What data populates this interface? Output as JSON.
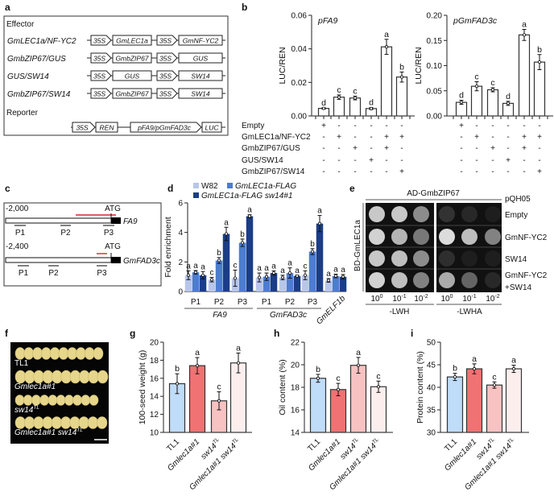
{
  "panel_labels": {
    "a": "a",
    "b": "b",
    "c": "c",
    "d": "d",
    "e": "e",
    "f": "f",
    "g": "g",
    "h": "h",
    "i": "i"
  },
  "panel_a": {
    "effector_title": "Effector",
    "reporter_title": "Reporter",
    "effectors": [
      {
        "name": "GmLEC1a/NF-YC2",
        "parts": [
          "35S",
          "GmLEC1a",
          "35S",
          "GmNF-YC2"
        ]
      },
      {
        "name": "GmbZIP67/GUS",
        "parts": [
          "35S",
          "GmbZIP67",
          "35S",
          "GUS"
        ]
      },
      {
        "name": "GUS/SW14",
        "parts": [
          "35S",
          "GUS",
          "35S",
          "SW14"
        ]
      },
      {
        "name": "GmbZIP67/SW14",
        "parts": [
          "35S",
          "GmbZIP67",
          "35S",
          "SW14"
        ]
      }
    ],
    "reporter_parts": [
      "35S",
      "REN",
      "pFA9/pGmFAD3c",
      "LUC"
    ]
  },
  "panel_b": {
    "rows": [
      {
        "label": "Empty",
        "signs": [
          "+",
          "-",
          "-",
          "-",
          "-",
          "-"
        ]
      },
      {
        "label": "GmLEC1a/NF-YC2",
        "signs": [
          "-",
          "+",
          "-",
          "-",
          "+",
          "+"
        ]
      },
      {
        "label": "GmbZIP67/GUS",
        "signs": [
          "-",
          "-",
          "+",
          "-",
          "+",
          "-"
        ]
      },
      {
        "label": "GUS/SW14",
        "signs": [
          "-",
          "-",
          "-",
          "+",
          "-",
          "-"
        ]
      },
      {
        "label": "GmbZIP67/SW14",
        "signs": [
          "-",
          "-",
          "-",
          "-",
          "-",
          "+"
        ]
      }
    ]
  },
  "panel_c": {
    "genes": [
      {
        "start": "-2,000",
        "atg": "ATG",
        "name": "FA9",
        "probes": [
          "P1",
          "P2",
          "P3"
        ]
      },
      {
        "start": "-2,400",
        "atg": "ATG",
        "name": "GmFAD3c",
        "probes": [
          "P1",
          "P2",
          "P3"
        ]
      }
    ],
    "highlight_color": "#d62828"
  },
  "panel_e": {
    "top_label": "AD-GmbZIP67",
    "side_label": "BD-GmLEC1a",
    "prey_header": "pQH05",
    "rows": [
      [
        "Empty"
      ],
      [
        "GmNF-YC2"
      ],
      [
        "SW14"
      ],
      [
        "GmNF-YC2",
        "+SW14"
      ]
    ],
    "dilutions": [
      {
        "base": "10",
        "exp": "0"
      },
      {
        "base": "10",
        "exp": "-1"
      },
      {
        "base": "10",
        "exp": "-2"
      },
      {
        "base": "10",
        "exp": "0"
      },
      {
        "base": "10",
        "exp": "-1"
      },
      {
        "base": "10",
        "exp": "-2"
      }
    ],
    "media": [
      "-LWH",
      "-LWHA"
    ],
    "growth": [
      [
        0.85,
        0.85,
        0.55,
        0.1,
        0.05,
        0.0
      ],
      [
        0.9,
        0.75,
        0.45,
        0.95,
        0.8,
        0.5
      ],
      [
        0.85,
        0.8,
        0.55,
        0.08,
        0.0,
        0.0
      ],
      [
        0.9,
        0.8,
        0.5,
        0.7,
        0.35,
        0.05
      ]
    ]
  },
  "panel_f": {
    "lines": [
      {
        "text": "TL1",
        "sup": "",
        "italic": false
      },
      {
        "text": "Gmlec1a#1",
        "sup": "",
        "italic": true
      },
      {
        "text": "sw14",
        "sup": "TL",
        "italic": true
      },
      {
        "text": "Gmlec1a#1 sw14",
        "sup": "TL",
        "italic": true
      }
    ],
    "seed_counts": [
      10,
      10,
      10,
      10
    ],
    "seed_color": "#e6d68c"
  },
  "chart_data": [
    {
      "type": "bar",
      "title": "pFA9",
      "ylabel": "LUC/REN",
      "ylim": [
        0,
        0.06
      ],
      "yticks": [
        "0.00",
        "0.02",
        "0.04",
        "0.06"
      ],
      "values": [
        0.0045,
        0.0112,
        0.0107,
        0.0044,
        0.0412,
        0.0232
      ],
      "sd": [
        0.0004,
        0.0013,
        0.0011,
        0.0006,
        0.0045,
        0.003
      ],
      "letters": [
        "d",
        "c",
        "c",
        "d",
        "a",
        "b"
      ]
    },
    {
      "type": "bar",
      "title": "pGmFAD3c",
      "ylabel": "LUC/REN",
      "ylim": [
        0,
        0.2
      ],
      "yticks": [
        "0.00",
        "0.05",
        "0.10",
        "0.15",
        "0.20"
      ],
      "values": [
        0.027,
        0.059,
        0.052,
        0.025,
        0.161,
        0.107
      ],
      "sd": [
        0.004,
        0.009,
        0.004,
        0.004,
        0.011,
        0.015
      ],
      "letters": [
        "d",
        "c",
        "c",
        "d",
        "a",
        "b"
      ]
    },
    {
      "type": "bar",
      "ylabel": "Fold enrichment",
      "ylim": [
        0,
        6
      ],
      "yticks": [
        "0",
        "2",
        "4",
        "6"
      ],
      "categories": [
        "P1",
        "P2",
        "P3",
        "P1",
        "P2",
        "P3",
        "GmELF1b"
      ],
      "groups": [
        {
          "label": "FA9"
        },
        {
          "label": "GmFAD3c"
        }
      ],
      "series": [
        {
          "name": "W82",
          "color": "#b8c6ea",
          "values": [
            1.1,
            0.8,
            0.9,
            0.95,
            0.95,
            1.1,
            0.75
          ],
          "sd": [
            0.3,
            0.15,
            0.55,
            0.3,
            0.15,
            0.3,
            0.12
          ],
          "letters": [
            "a",
            "c",
            "c",
            "a",
            "a",
            "c",
            "a"
          ]
        },
        {
          "name": "GmLEC1a-FLAG",
          "color": "#4c7dd0",
          "values": [
            1.3,
            2.1,
            3.3,
            1.0,
            1.25,
            2.7,
            1.05
          ],
          "sd": [
            0.12,
            0.2,
            0.25,
            0.25,
            0.35,
            0.2,
            0.12
          ],
          "letters": [
            "a",
            "b",
            "b",
            "a",
            "a",
            "b",
            "a"
          ]
        },
        {
          "name": "GmLEC1a-FLAG sw14#1",
          "color": "#1b3d88",
          "values": [
            1.1,
            3.9,
            5.1,
            1.25,
            1.05,
            4.6,
            1.0
          ],
          "sd": [
            0.25,
            0.45,
            0.1,
            0.15,
            0.05,
            0.55,
            0.15
          ],
          "letters": [
            "a",
            "a",
            "a",
            "a",
            "a",
            "a",
            "a"
          ]
        }
      ]
    },
    {
      "type": "bar",
      "ylabel": "100-seed weight (g)",
      "ylim": [
        10,
        20
      ],
      "yticks": [
        "10",
        "12",
        "14",
        "16",
        "18",
        "20"
      ],
      "categories": [
        {
          "text": "TL1",
          "sup": "",
          "italic": false
        },
        {
          "text": "Gmlec1a#1",
          "sup": "",
          "italic": true
        },
        {
          "text": "sw14",
          "sup": "TL",
          "italic": true
        },
        {
          "text": "Gmlec1a#1 sw14",
          "sup": "TL",
          "italic": true
        }
      ],
      "values": [
        15.4,
        17.4,
        13.5,
        17.7
      ],
      "sd": [
        1.1,
        0.9,
        1.0,
        1.1
      ],
      "letters": [
        "b",
        "a",
        "c",
        "a"
      ],
      "colors": [
        "#bfdcf8",
        "#f07272",
        "#f8c2c2",
        "#fdeeee"
      ]
    },
    {
      "type": "bar",
      "ylabel": "Oil content (%)",
      "ylim": [
        14,
        22
      ],
      "yticks": [
        "14",
        "16",
        "18",
        "20",
        "22"
      ],
      "categories": [
        {
          "text": "TL1",
          "sup": "",
          "italic": false
        },
        {
          "text": "Gmlec1a#1",
          "sup": "",
          "italic": true
        },
        {
          "text": "sw14",
          "sup": "TL",
          "italic": true
        },
        {
          "text": "Gmlec1a#1 sw14",
          "sup": "TL",
          "italic": true
        }
      ],
      "values": [
        18.8,
        17.8,
        19.95,
        18.05
      ],
      "sd": [
        0.35,
        0.55,
        0.7,
        0.5
      ],
      "letters": [
        "b",
        "c",
        "a",
        "c"
      ],
      "colors": [
        "#bfdcf8",
        "#f07272",
        "#f8c2c2",
        "#fdeeee"
      ]
    },
    {
      "type": "bar",
      "ylabel": "Protein content (%)",
      "ylim": [
        30,
        50
      ],
      "yticks": [
        "30",
        "35",
        "40",
        "45",
        "50"
      ],
      "categories": [
        {
          "text": "TL1",
          "sup": "",
          "italic": false
        },
        {
          "text": "Gmlec1a#1",
          "sup": "",
          "italic": true
        },
        {
          "text": "sw14",
          "sup": "TL",
          "italic": true
        },
        {
          "text": "Gmlec1a#1 sw14",
          "sup": "TL",
          "italic": true
        }
      ],
      "values": [
        42.3,
        44.1,
        40.5,
        44.1
      ],
      "sd": [
        0.8,
        1.1,
        0.7,
        0.8
      ],
      "letters": [
        "b",
        "a",
        "c",
        "a"
      ],
      "colors": [
        "#bfdcf8",
        "#f07272",
        "#f8c2c2",
        "#fdeeee"
      ]
    }
  ]
}
